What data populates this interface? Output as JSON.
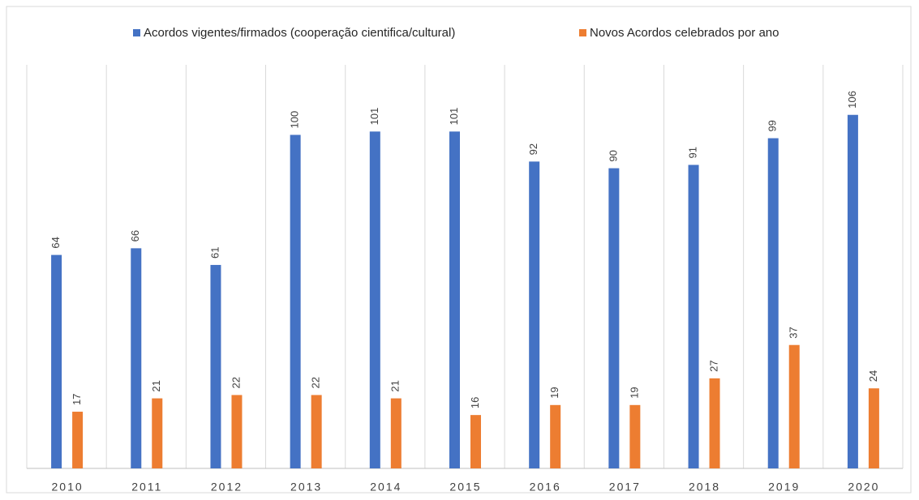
{
  "chart_data": {
    "type": "bar",
    "categories": [
      "2010",
      "2011",
      "2012",
      "2013",
      "2014",
      "2015",
      "2016",
      "2017",
      "2018",
      "2019",
      "2020"
    ],
    "series": [
      {
        "name": "Acordos vigentes/firmados (cooperação cientifica/cultural)",
        "color": "#4472c4",
        "values": [
          64,
          66,
          61,
          100,
          101,
          101,
          92,
          90,
          91,
          99,
          106
        ]
      },
      {
        "name": "Novos Acordos celebrados por ano",
        "color": "#ed7d31",
        "values": [
          17,
          21,
          22,
          22,
          21,
          16,
          19,
          19,
          27,
          37,
          24
        ]
      }
    ],
    "ylim": [
      0,
      121
    ],
    "legend": "top"
  }
}
